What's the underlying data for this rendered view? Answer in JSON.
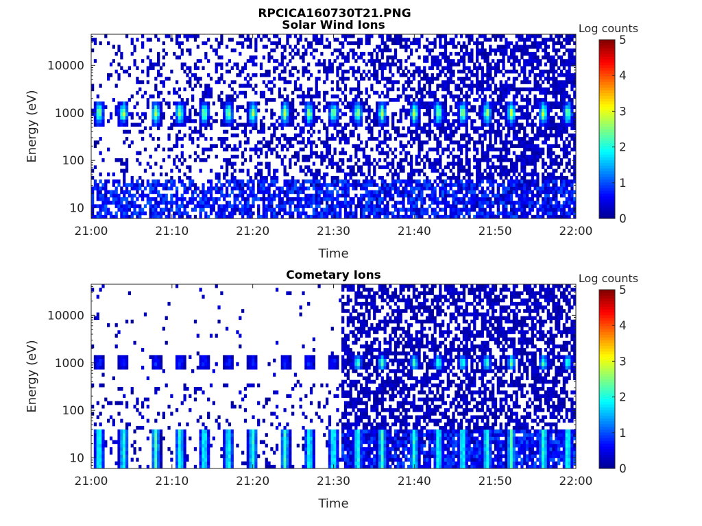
{
  "figure": {
    "title": "RPCICA160730T21.PNG"
  },
  "colormap": [
    "#00008f",
    "#0000ff",
    "#0080ff",
    "#00ffff",
    "#80ff80",
    "#ffff00",
    "#ff8000",
    "#ff0000",
    "#800000"
  ],
  "chart_data": [
    {
      "type": "heatmap",
      "title": "Solar Wind Ions",
      "xlabel": "Time",
      "ylabel": "Energy (eV)",
      "xlim": [
        "21:00",
        "22:00"
      ],
      "xticks": [
        "21:00",
        "21:10",
        "21:20",
        "21:30",
        "21:40",
        "21:50",
        "22:00"
      ],
      "ylim": [
        6,
        45000
      ],
      "yscale": "log",
      "yticks": [
        10,
        100,
        1000,
        10000
      ],
      "ytick_labels": [
        "10",
        "100",
        "1000",
        "10000"
      ],
      "colorbar": {
        "label": "Log counts",
        "range": [
          0,
          5
        ],
        "ticks": [
          "0",
          "1",
          "2",
          "3",
          "4",
          "5"
        ]
      },
      "pulse_period_min": 3.2,
      "pulse_times": [
        "21:01",
        "21:04",
        "21:08",
        "21:11",
        "21:14",
        "21:17",
        "21:20",
        "21:24",
        "21:27",
        "21:30",
        "21:33",
        "21:36",
        "21:40",
        "21:43",
        "21:46",
        "21:49",
        "21:52",
        "21:56",
        "21:59"
      ],
      "peak_energy_eV": 1000,
      "peak_log_counts": 3.0,
      "low_energy_band": {
        "range_eV": [
          6,
          40
        ],
        "log_counts": 1.0
      },
      "background_log_counts": 0.2
    },
    {
      "type": "heatmap",
      "title": "Cometary Ions",
      "xlabel": "Time",
      "ylabel": "Energy (eV)",
      "xlim": [
        "21:00",
        "22:00"
      ],
      "xticks": [
        "21:00",
        "21:10",
        "21:20",
        "21:30",
        "21:40",
        "21:50",
        "22:00"
      ],
      "ylim": [
        6,
        45000
      ],
      "yscale": "log",
      "yticks": [
        10,
        100,
        1000,
        10000
      ],
      "ytick_labels": [
        "10",
        "100",
        "1000",
        "10000"
      ],
      "colorbar": {
        "label": "Log counts",
        "range": [
          0,
          5
        ],
        "ticks": [
          "0",
          "1",
          "2",
          "3",
          "4",
          "5"
        ]
      },
      "pulse_period_min": 3.2,
      "pulse_times": [
        "21:01",
        "21:04",
        "21:08",
        "21:11",
        "21:14",
        "21:17",
        "21:20",
        "21:24",
        "21:27",
        "21:30",
        "21:33",
        "21:36",
        "21:40",
        "21:43",
        "21:46",
        "21:49",
        "21:52",
        "21:56",
        "21:59"
      ],
      "peak_energy_eV": 1000,
      "peak_log_counts_before_2131": 0.8,
      "peak_log_counts_after_2131": 2.5,
      "low_energy_band": {
        "range_eV": [
          6,
          40
        ],
        "log_counts_peak": 2.0
      },
      "background_onset": "21:31",
      "background_log_counts": 0.2
    }
  ]
}
